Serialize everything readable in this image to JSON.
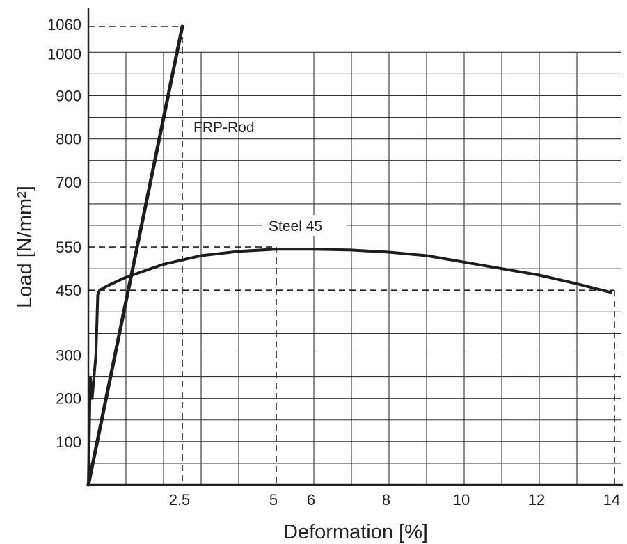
{
  "chart_data": {
    "type": "line",
    "title": "",
    "xlabel": "Deformation [%]",
    "ylabel": "Load [N/mm²]",
    "xlim": [
      0,
      14
    ],
    "ylim": [
      0,
      1060
    ],
    "grid": true,
    "x_ticks": [
      {
        "value": 2.5,
        "label": "2.5"
      },
      {
        "value": 5,
        "label": "5"
      },
      {
        "value": 6,
        "label": "6"
      },
      {
        "value": 8,
        "label": "8"
      },
      {
        "value": 10,
        "label": "10"
      },
      {
        "value": 12,
        "label": "12"
      },
      {
        "value": 14,
        "label": "14"
      }
    ],
    "y_ticks": [
      {
        "value": 100,
        "label": "100"
      },
      {
        "value": 200,
        "label": "200"
      },
      {
        "value": 300,
        "label": "300"
      },
      {
        "value": 450,
        "label": "450"
      },
      {
        "value": 550,
        "label": "550"
      },
      {
        "value": 700,
        "label": "700"
      },
      {
        "value": 800,
        "label": "800"
      },
      {
        "value": 900,
        "label": "900"
      },
      {
        "value": 1000,
        "label": "1000"
      },
      {
        "value": 1060,
        "label": "1060"
      }
    ],
    "series": [
      {
        "name": "FRP-Rod",
        "x": [
          0,
          2.5
        ],
        "y": [
          0,
          1060
        ]
      },
      {
        "name": "Steel 45",
        "x": [
          0,
          0.05,
          0.1,
          0.2,
          0.25,
          0.3,
          0.5,
          1,
          2,
          3,
          4,
          5,
          6,
          7,
          8,
          9,
          10,
          11,
          12,
          13,
          13.9
        ],
        "y": [
          0,
          250,
          200,
          300,
          440,
          450,
          460,
          480,
          510,
          530,
          540,
          545,
          545,
          543,
          538,
          530,
          515,
          500,
          485,
          465,
          445
        ]
      }
    ],
    "reference_lines": [
      {
        "x": 2.5,
        "y": 1060
      },
      {
        "x": 5,
        "y": 550
      },
      {
        "x": 14,
        "y": 450
      }
    ]
  }
}
